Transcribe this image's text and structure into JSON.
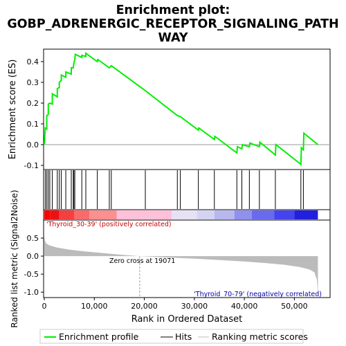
{
  "chart_data": {
    "type": "line",
    "title_line1": "Enrichment plot:",
    "title_line2": "GOBP_ADRENERGIC_RECEPTOR_SIGNALING_PATH",
    "title_line3": "WAY",
    "es_ylabel": "Enrichment score (ES)",
    "es_yticks": [
      "0.4",
      "0.3",
      "0.2",
      "0.1",
      "0.0",
      "-0.1"
    ],
    "es_ylim": [
      -0.12,
      0.46
    ],
    "rank_ylabel": "Ranked list metric (Signal2Noise)",
    "rank_yticks": [
      "0.5",
      "0.0",
      "-0.5",
      "-1.0"
    ],
    "rank_ylim": [
      -1.15,
      1.0
    ],
    "xlabel": "Rank in Ordered Dataset",
    "xticks": [
      "0",
      "10,000",
      "20,000",
      "30,000",
      "40,000",
      "50,000"
    ],
    "xlim": [
      0,
      57000
    ],
    "n_genes": 54700,
    "zero_cross_label": "Zero cross at 19071",
    "zero_cross": 19071,
    "pos_label": "'Thyroid_30-39' (positively correlated)",
    "neg_label": "'Thyroid_70-79' (negatively correlated)",
    "legend": [
      "Enrichment profile",
      "Hits",
      "Ranking metric scores"
    ],
    "hits": [
      200,
      500,
      800,
      1100,
      1600,
      2600,
      3000,
      3400,
      4300,
      5400,
      5800,
      5900,
      6100,
      7500,
      8300,
      10600,
      13000,
      13400,
      20200,
      26600,
      27200,
      30800,
      34000,
      38500,
      39500,
      41000,
      43000,
      46200,
      51300,
      51800
    ],
    "es_profile": [
      [
        0,
        0.0
      ],
      [
        200,
        0.08
      ],
      [
        500,
        0.075
      ],
      [
        500,
        0.14
      ],
      [
        800,
        0.145
      ],
      [
        800,
        0.195
      ],
      [
        1100,
        0.2
      ],
      [
        1600,
        0.195
      ],
      [
        1600,
        0.245
      ],
      [
        2600,
        0.23
      ],
      [
        2600,
        0.27
      ],
      [
        3000,
        0.275
      ],
      [
        3000,
        0.3
      ],
      [
        3400,
        0.31
      ],
      [
        3400,
        0.335
      ],
      [
        4300,
        0.325
      ],
      [
        4300,
        0.35
      ],
      [
        5400,
        0.34
      ],
      [
        5400,
        0.37
      ],
      [
        5800,
        0.37
      ],
      [
        5900,
        0.39
      ],
      [
        6100,
        0.41
      ],
      [
        6200,
        0.435
      ],
      [
        7500,
        0.42
      ],
      [
        7500,
        0.43
      ],
      [
        8300,
        0.425
      ],
      [
        8300,
        0.44
      ],
      [
        10600,
        0.4
      ],
      [
        10700,
        0.41
      ],
      [
        13000,
        0.37
      ],
      [
        13400,
        0.38
      ],
      [
        20200,
        0.26
      ],
      [
        26600,
        0.14
      ],
      [
        27200,
        0.135
      ],
      [
        30800,
        0.07
      ],
      [
        30900,
        0.08
      ],
      [
        34000,
        0.025
      ],
      [
        34100,
        0.04
      ],
      [
        38500,
        -0.04
      ],
      [
        38600,
        -0.01
      ],
      [
        39500,
        -0.02
      ],
      [
        39600,
        0.0
      ],
      [
        41000,
        -0.01
      ],
      [
        41100,
        0.008
      ],
      [
        43000,
        -0.01
      ],
      [
        43100,
        0.012
      ],
      [
        46200,
        -0.05
      ],
      [
        46300,
        0.0
      ],
      [
        51300,
        -0.095
      ],
      [
        51400,
        -0.015
      ],
      [
        51800,
        -0.025
      ],
      [
        51900,
        0.055
      ],
      [
        54700,
        0.0
      ]
    ],
    "ranking_metric": [
      [
        0,
        0.55
      ],
      [
        150,
        0.42
      ],
      [
        400,
        0.35
      ],
      [
        1000,
        0.3
      ],
      [
        2500,
        0.24
      ],
      [
        5000,
        0.18
      ],
      [
        8000,
        0.13
      ],
      [
        12000,
        0.08
      ],
      [
        16000,
        0.03
      ],
      [
        19071,
        0.0
      ],
      [
        25000,
        -0.04
      ],
      [
        30000,
        -0.07
      ],
      [
        35000,
        -0.11
      ],
      [
        40000,
        -0.15
      ],
      [
        44000,
        -0.19
      ],
      [
        48000,
        -0.24
      ],
      [
        51000,
        -0.3
      ],
      [
        53000,
        -0.37
      ],
      [
        54000,
        -0.45
      ],
      [
        54500,
        -0.65
      ],
      [
        54700,
        -1.1
      ]
    ],
    "colors": {
      "profile": "#00ee00",
      "hits": "#000000",
      "metric_fill": "#bbbbbb",
      "zero_line": "#999999",
      "pos_text": "#cc0000",
      "neg_text": "#0000aa"
    },
    "bar_segments": [
      [
        "#ff0000",
        0,
        1200
      ],
      [
        "#ee1111",
        1200,
        3000
      ],
      [
        "#f44040",
        3000,
        6000
      ],
      [
        "#fa6a6a",
        6000,
        9000
      ],
      [
        "#fc8f8f",
        9000,
        14500
      ],
      [
        "#ffc0da",
        14500,
        25500
      ],
      [
        "#e6e2f4",
        25500,
        30500
      ],
      [
        "#d4d4f2",
        30500,
        34000
      ],
      [
        "#b8b8ee",
        34000,
        38000
      ],
      [
        "#9090ee",
        38000,
        41500
      ],
      [
        "#6a6aef",
        41500,
        46000
      ],
      [
        "#4444ee",
        46000,
        50000
      ],
      [
        "#2020dd",
        50000,
        54700
      ]
    ]
  }
}
